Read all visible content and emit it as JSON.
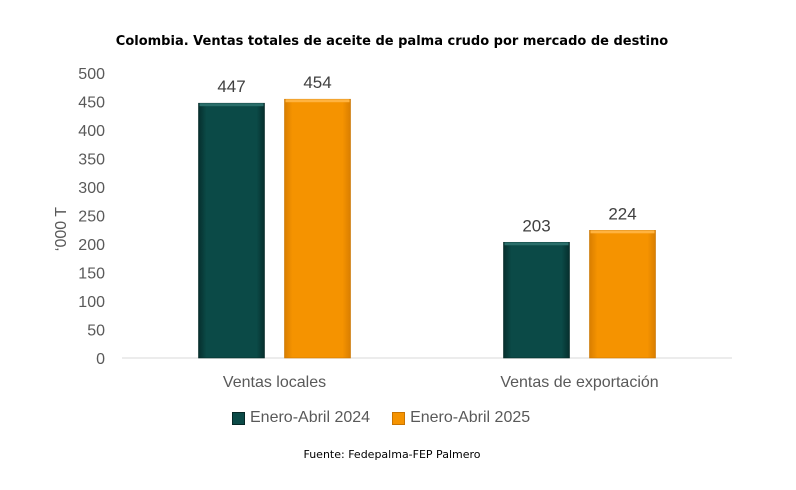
{
  "chart_data": {
    "type": "bar",
    "title": "Colombia. Ventas totales de aceite de palma crudo por mercado de destino",
    "ylabel": "‘000 T",
    "xlabel": "",
    "ylim": [
      0,
      500
    ],
    "yticks": [
      0,
      50,
      100,
      150,
      200,
      250,
      300,
      350,
      400,
      450,
      500
    ],
    "categories": [
      "Ventas locales",
      "Ventas de exportación"
    ],
    "series": [
      {
        "name": "Enero-Abril 2024",
        "values": [
          447,
          203
        ],
        "color": "#0B4A47"
      },
      {
        "name": "Enero-Abril 2025",
        "values": [
          454,
          224
        ],
        "color": "#F59300"
      }
    ],
    "data_labels": true,
    "grid": false,
    "legend_position": "bottom",
    "source": "Fuente: Fedepalma-FEP Palmero"
  }
}
